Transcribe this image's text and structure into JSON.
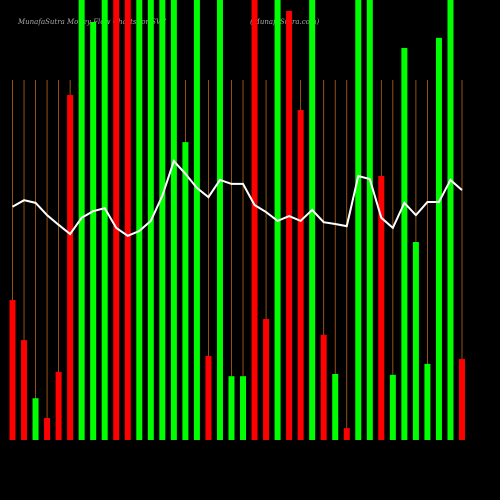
{
  "chart_data": {
    "type": "bar",
    "title": "MunafaSutra  Money Flow Charts for SVC",
    "subtitle": "(MunafaSutra.com)",
    "categories": [
      null,
      null,
      null,
      null,
      null,
      null,
      null,
      null,
      null,
      null,
      null,
      null,
      null,
      null,
      null,
      null,
      null,
      null,
      null,
      null,
      null,
      null,
      null,
      null,
      null,
      null,
      null,
      null,
      null,
      null,
      null,
      null,
      null,
      null,
      null,
      null,
      null,
      null,
      null,
      null
    ],
    "series": [
      {
        "values": [
          31.8,
          22.7,
          9.5,
          5,
          15.5,
          78.4,
          100,
          95,
          100,
          100,
          100,
          100,
          100,
          100,
          100,
          67.7,
          100,
          19.1,
          100,
          14.5,
          14.5,
          100,
          27.5,
          100,
          97.5,
          75,
          100,
          23.9,
          15,
          2.7,
          100,
          100,
          60,
          14.8,
          89.1,
          45,
          17.3,
          91.4,
          100,
          18.4
        ],
        "colors": [
          "#ff0000",
          "#ff0000",
          "#00ff00",
          "#ff0000",
          "#ff0000",
          "#ff0000",
          "#00ff00",
          "#00ff00",
          "#00ff00",
          "#ff0000",
          "#ff0000",
          "#00ff00",
          "#00ff00",
          "#00ff00",
          "#00ff00",
          "#00ff00",
          "#00ff00",
          "#ff0000",
          "#00ff00",
          "#00ff00",
          "#00ff00",
          "#ff0000",
          "#ff0000",
          "#00ff00",
          "#ff0000",
          "#ff0000",
          "#00ff00",
          "#ff0000",
          "#00ff00",
          "#ff0000",
          "#00ff00",
          "#00ff00",
          "#ff0000",
          "#00ff00",
          "#00ff00",
          "#00ff00",
          "#00ff00",
          "#00ff00",
          "#00ff00",
          "#ff0000"
        ]
      },
      {
        "type": "line",
        "color": "#ffffff",
        "values": [
          53,
          54.5,
          53.9,
          51.1,
          48.9,
          46.8,
          50.5,
          52,
          52.7,
          48.2,
          46.4,
          47.5,
          49.8,
          55.5,
          63.4,
          60.5,
          57.3,
          55.2,
          59.1,
          58.2,
          58.2,
          53.4,
          51.8,
          49.8,
          50.9,
          49.8,
          52.3,
          49.5,
          49.1,
          48.6,
          60,
          59.3,
          50.5,
          48.2,
          53.9,
          51.1,
          54.1,
          54.1,
          59.1,
          56.8
        ]
      }
    ],
    "ylim": [
      0,
      100
    ],
    "grid": true,
    "grid_color": "#b8651a"
  }
}
